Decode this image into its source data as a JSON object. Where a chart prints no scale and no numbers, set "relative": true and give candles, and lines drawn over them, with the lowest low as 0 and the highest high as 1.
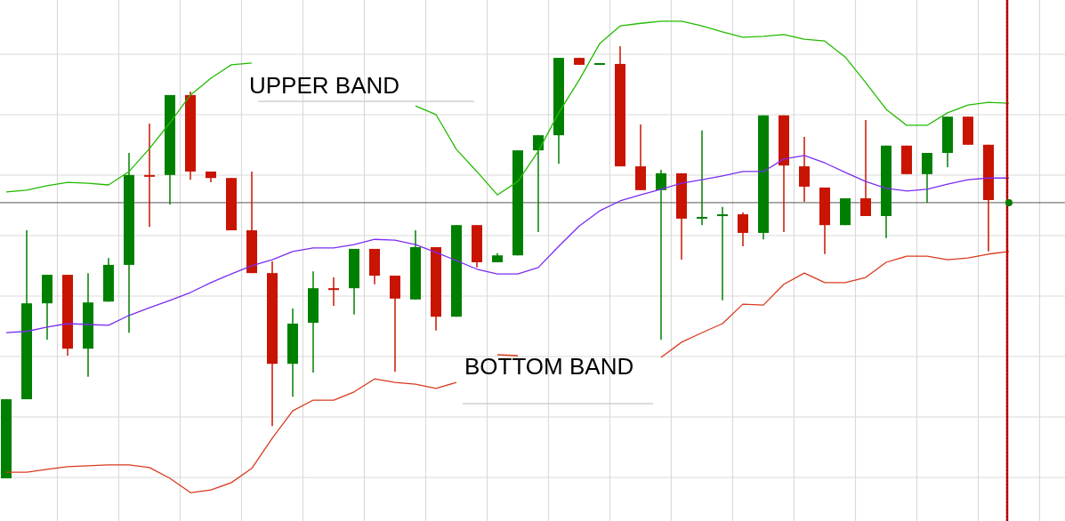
{
  "chart_data": {
    "type": "candlestick",
    "relative": true,
    "grid": true,
    "categories": [
      null,
      null,
      null,
      null,
      null,
      null,
      null,
      null,
      null,
      null,
      null,
      null,
      null,
      null,
      null,
      null,
      null,
      null,
      null,
      null,
      null,
      null,
      null,
      null,
      null,
      null,
      null,
      null,
      null,
      null,
      null,
      null,
      null,
      null,
      null,
      null,
      null,
      null,
      null,
      null,
      null,
      null,
      null,
      null,
      null,
      null,
      null,
      null,
      null,
      null
    ],
    "ohlc": [
      [
        0,
        0.183,
        0,
        0.183
      ],
      [
        0.183,
        0.574,
        0.183,
        0.405
      ],
      [
        0.405,
        0.471,
        0.321,
        0.471
      ],
      [
        0.471,
        0.471,
        0.284,
        0.3
      ],
      [
        0.3,
        0.475,
        0.235,
        0.407
      ],
      [
        0.409,
        0.51,
        0.409,
        0.494
      ],
      [
        0.494,
        0.753,
        0.337,
        0.702
      ],
      [
        0.702,
        0.821,
        0.582,
        0.7
      ],
      [
        0.702,
        0.887,
        0.634,
        0.887
      ],
      [
        0.887,
        0.895,
        0.691,
        0.71
      ],
      [
        0.71,
        0.71,
        0.685,
        0.695
      ],
      [
        0.695,
        0.695,
        0.574,
        0.574
      ],
      [
        0.574,
        0.71,
        0.475,
        0.475
      ],
      [
        0.475,
        0.502,
        0.121,
        0.265
      ],
      [
        0.265,
        0.393,
        0.189,
        0.358
      ],
      [
        0.36,
        0.479,
        0.245,
        0.44
      ],
      [
        0.44,
        0.465,
        0.399,
        0.438
      ],
      [
        0.44,
        0.531,
        0.379,
        0.531
      ],
      [
        0.531,
        0.531,
        0.449,
        0.469
      ],
      [
        0.469,
        0.469,
        0.247,
        0.416
      ],
      [
        0.414,
        0.574,
        0.414,
        0.535
      ],
      [
        0.535,
        0.535,
        0.342,
        0.374
      ],
      [
        0.374,
        0.586,
        0.374,
        0.586
      ],
      [
        0.586,
        0.586,
        0.488,
        0.5
      ],
      [
        0.5,
        0.521,
        0.5,
        0.516
      ],
      [
        0.516,
        0.759,
        0.516,
        0.759
      ],
      [
        0.759,
        0.794,
        0.57,
        0.794
      ],
      [
        0.794,
        0.973,
        0.728,
        0.973
      ],
      [
        0.973,
        0.973,
        0.957,
        0.957
      ],
      [
        0.959,
        0.961,
        0.959,
        0.961
      ],
      [
        0.959,
        1,
        0.722,
        0.722
      ],
      [
        0.722,
        0.819,
        0.667,
        0.667
      ],
      [
        0.667,
        0.714,
        0.321,
        0.706
      ],
      [
        0.706,
        0.706,
        0.506,
        0.601
      ],
      [
        0.603,
        0.805,
        0.586,
        0.605
      ],
      [
        0.609,
        0.628,
        0.412,
        0.611
      ],
      [
        0.611,
        0.615,
        0.537,
        0.568
      ],
      [
        0.568,
        0.84,
        0.553,
        0.84
      ],
      [
        0.84,
        0.84,
        0.57,
        0.724
      ],
      [
        0.722,
        0.79,
        0.64,
        0.675
      ],
      [
        0.673,
        0.673,
        0.519,
        0.586
      ],
      [
        0.586,
        0.648,
        0.586,
        0.648
      ],
      [
        0.648,
        0.829,
        0.607,
        0.607
      ],
      [
        0.607,
        0.77,
        0.556,
        0.77
      ],
      [
        0.77,
        0.77,
        0.704,
        0.704
      ],
      [
        0.704,
        0.753,
        0.638,
        0.753
      ],
      [
        0.753,
        0.837,
        0.72,
        0.837
      ],
      [
        0.837,
        0.837,
        0.772,
        0.772
      ],
      [
        0.772,
        0.772,
        0.525,
        0.644
      ],
      null
    ],
    "colors": [
      "#008000",
      "#008000",
      "#008000",
      "#c81400",
      "#008000",
      "#008000",
      "#008000",
      "#c81400",
      "#008000",
      "#c81400",
      "#c81400",
      "#c81400",
      "#c81400",
      "#c81400",
      "#008000",
      "#008000",
      "#c81400",
      "#008000",
      "#c81400",
      "#c81400",
      "#008000",
      "#c81400",
      "#008000",
      "#c81400",
      "#008000",
      "#008000",
      "#008000",
      "#008000",
      "#c81400",
      "#008000",
      "#c81400",
      "#c81400",
      "#008000",
      "#c81400",
      "#008000",
      "#008000",
      "#c81400",
      "#008000",
      "#c81400",
      "#c81400",
      "#c81400",
      "#008000",
      "#c81400",
      "#008000",
      "#c81400",
      "#008000",
      "#008000",
      "#c81400",
      "#c81400",
      null
    ],
    "series": [
      {
        "type": "line",
        "color": "#22bb00",
        "values": [
          0.663,
          0.667,
          0.677,
          0.685,
          0.683,
          0.679,
          0.71,
          0.763,
          0.823,
          0.887,
          0.926,
          0.957,
          0.961,
          null,
          null,
          null,
          null,
          null,
          null,
          null,
          0.862,
          0.842,
          0.761,
          0.71,
          0.656,
          0.687,
          0.757,
          0.846,
          0.922,
          1.006,
          1.047,
          1.053,
          1.058,
          1.058,
          1.047,
          1.033,
          1.021,
          1.023,
          1.027,
          1.016,
          1.012,
          0.975,
          0.916,
          0.854,
          0.817,
          0.817,
          0.846,
          0.864,
          0.87,
          0.868
        ]
      },
      {
        "type": "line",
        "color": "#7b2cf0",
        "values": [
          0.337,
          0.34,
          0.35,
          0.358,
          0.356,
          0.354,
          0.377,
          0.395,
          0.412,
          0.43,
          0.453,
          0.473,
          0.492,
          0.506,
          0.525,
          0.533,
          0.533,
          0.541,
          0.553,
          0.551,
          0.541,
          0.523,
          0.504,
          0.484,
          0.473,
          0.473,
          0.488,
          0.537,
          0.584,
          0.619,
          0.642,
          0.656,
          0.669,
          0.683,
          0.691,
          0.7,
          0.71,
          0.71,
          0.739,
          0.747,
          0.73,
          0.708,
          0.687,
          0.671,
          0.665,
          0.669,
          0.681,
          0.691,
          0.695,
          0.695
        ]
      },
      {
        "type": "line",
        "color": "#d93a1e",
        "values": [
          0.014,
          0.014,
          0.021,
          0.027,
          0.029,
          0.031,
          0.031,
          0.025,
          0,
          -0.033,
          -0.027,
          -0.01,
          0.023,
          0.093,
          0.156,
          0.181,
          0.181,
          0.2,
          0.23,
          0.222,
          0.218,
          0.208,
          0.222,
          null,
          0.286,
          0.284,
          null,
          null,
          null,
          null,
          null,
          null,
          0.28,
          0.315,
          0.337,
          0.358,
          0.403,
          0.401,
          0.449,
          0.475,
          0.453,
          0.453,
          0.465,
          0.5,
          0.514,
          0.514,
          0.506,
          0.51,
          0.519,
          0.525
        ]
      }
    ],
    "ref_lines": [
      {
        "axis": "y",
        "value": 0.638,
        "color": "#555555"
      }
    ],
    "annotations": [
      "UPPER BAND",
      "BOTTOM BAND"
    ]
  }
}
